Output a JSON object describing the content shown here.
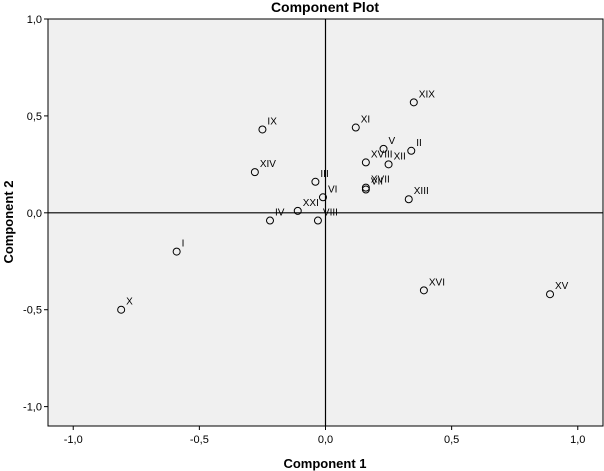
{
  "chart_data": {
    "type": "scatter",
    "title": "Component Plot",
    "xlabel": "Component 1",
    "ylabel": "Component 2",
    "xlim": [
      -1.1,
      1.1
    ],
    "ylim": [
      -1.1,
      1.0
    ],
    "xticks": [
      {
        "value": -1.0,
        "label": "-1,0"
      },
      {
        "value": -0.5,
        "label": "-0,5"
      },
      {
        "value": 0.0,
        "label": "0,0"
      },
      {
        "value": 0.5,
        "label": "0,5"
      },
      {
        "value": 1.0,
        "label": "1,0"
      }
    ],
    "yticks": [
      {
        "value": -1.0,
        "label": "-1,0"
      },
      {
        "value": -0.5,
        "label": "-0,5"
      },
      {
        "value": 0.0,
        "label": "0,0"
      },
      {
        "value": 0.5,
        "label": "0,5"
      },
      {
        "value": 1.0,
        "label": "1,0"
      }
    ],
    "reference_lines": {
      "x": 0,
      "y": 0
    },
    "grid": false,
    "colors": {
      "plot_bg": "#f0f0f0",
      "marker": "#000000"
    },
    "points": [
      {
        "label": "I",
        "x": -0.59,
        "y": -0.2
      },
      {
        "label": "II",
        "x": 0.34,
        "y": 0.32
      },
      {
        "label": "III",
        "x": -0.04,
        "y": 0.16
      },
      {
        "label": "IV",
        "x": -0.22,
        "y": -0.04
      },
      {
        "label": "V",
        "x": 0.23,
        "y": 0.33
      },
      {
        "label": "VI",
        "x": -0.01,
        "y": 0.08
      },
      {
        "label": "VII",
        "x": 0.16,
        "y": 0.12
      },
      {
        "label": "VIII",
        "x": -0.03,
        "y": -0.04
      },
      {
        "label": "IX",
        "x": -0.25,
        "y": 0.43
      },
      {
        "label": "X",
        "x": -0.81,
        "y": -0.5
      },
      {
        "label": "XI",
        "x": 0.12,
        "y": 0.44
      },
      {
        "label": "XII",
        "x": 0.25,
        "y": 0.25
      },
      {
        "label": "XIII",
        "x": 0.33,
        "y": 0.07
      },
      {
        "label": "XIV",
        "x": -0.28,
        "y": 0.21
      },
      {
        "label": "XV",
        "x": 0.89,
        "y": -0.42
      },
      {
        "label": "XVI",
        "x": 0.39,
        "y": -0.4
      },
      {
        "label": "XVII",
        "x": 0.16,
        "y": 0.13
      },
      {
        "label": "XVIII",
        "x": 0.16,
        "y": 0.26
      },
      {
        "label": "XIX",
        "x": 0.35,
        "y": 0.57
      },
      {
        "label": "XXI",
        "x": -0.11,
        "y": 0.01
      }
    ]
  }
}
